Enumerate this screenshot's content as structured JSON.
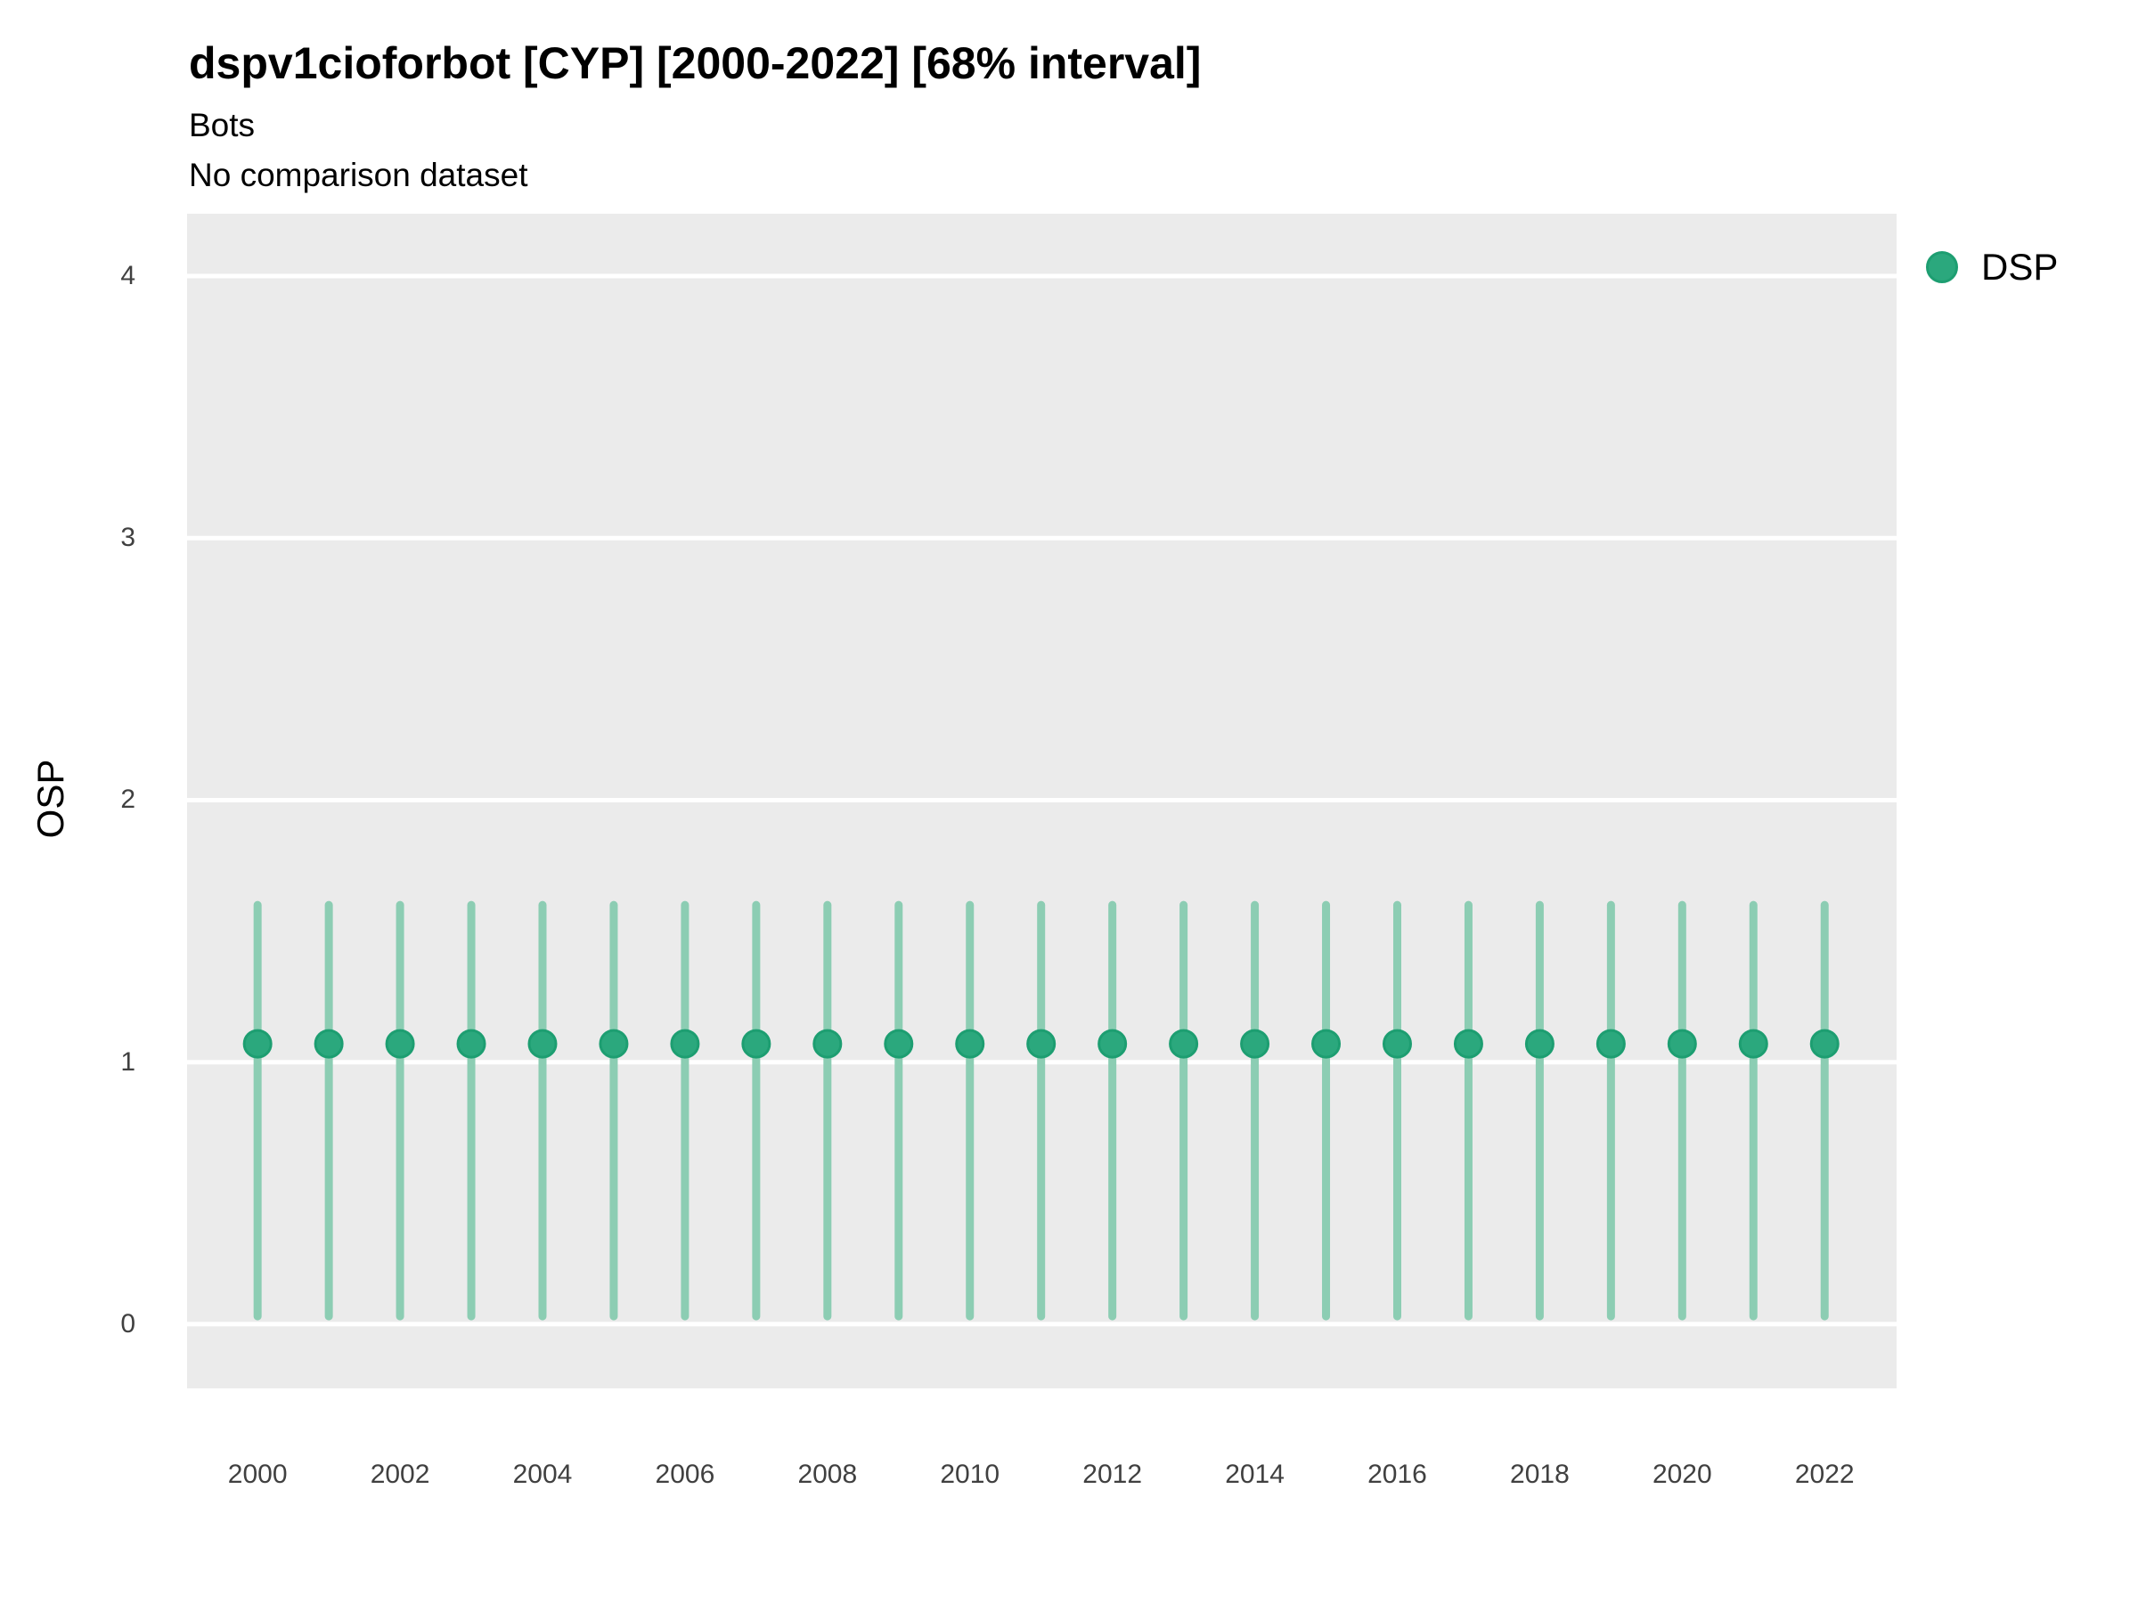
{
  "title": "dspv1cioforbot [CYP] [2000-2022] [68% interval]",
  "subtitle": "Bots",
  "subtitle2": "No comparison dataset",
  "legend": {
    "position": "right-top",
    "items": [
      {
        "label": "DSP",
        "color": "#2BA87D"
      }
    ]
  },
  "colors": {
    "panel_bg": "#EBEBEB",
    "gridline": "#FFFFFF",
    "point_fill": "#2BA87D",
    "point_stroke": "#1D9E71",
    "interval": "#8CCDB3",
    "title_text": "#000000",
    "tick_text": "#404040"
  },
  "chart_data": {
    "type": "scatter",
    "subtype": "pointrange",
    "title": "dspv1cioforbot [CYP] [2000-2022] [68% interval]",
    "subtitle": "Bots",
    "annotation": "No comparison dataset",
    "interval_level": "68%",
    "xlabel": "",
    "ylabel": "OSP",
    "x": [
      2000,
      2001,
      2002,
      2003,
      2004,
      2005,
      2006,
      2007,
      2008,
      2009,
      2010,
      2011,
      2012,
      2013,
      2014,
      2015,
      2016,
      2017,
      2018,
      2019,
      2020,
      2021,
      2022
    ],
    "series": [
      {
        "name": "DSP",
        "values": [
          1.07,
          1.07,
          1.07,
          1.07,
          1.07,
          1.07,
          1.07,
          1.07,
          1.07,
          1.07,
          1.07,
          1.07,
          1.07,
          1.07,
          1.07,
          1.07,
          1.07,
          1.07,
          1.07,
          1.07,
          1.07,
          1.07,
          1.07
        ],
        "lower": [
          0.03,
          0.03,
          0.03,
          0.03,
          0.03,
          0.03,
          0.03,
          0.03,
          0.03,
          0.03,
          0.03,
          0.03,
          0.03,
          0.03,
          0.03,
          0.03,
          0.03,
          0.03,
          0.03,
          0.03,
          0.03,
          0.03,
          0.03
        ],
        "upper": [
          1.6,
          1.6,
          1.6,
          1.6,
          1.6,
          1.6,
          1.6,
          1.6,
          1.6,
          1.6,
          1.6,
          1.6,
          1.6,
          1.6,
          1.6,
          1.6,
          1.6,
          1.6,
          1.6,
          1.6,
          1.6,
          1.6,
          1.6
        ]
      }
    ],
    "xticks": [
      2000,
      2002,
      2004,
      2006,
      2008,
      2010,
      2012,
      2014,
      2016,
      2018,
      2020,
      2022
    ],
    "yticks": [
      0,
      1,
      2,
      3,
      4
    ],
    "xlim": [
      1999.01,
      2023.01
    ],
    "ylim": [
      -0.245,
      4.238
    ],
    "grid": "major-horizontal-only",
    "legend_position": "right"
  }
}
